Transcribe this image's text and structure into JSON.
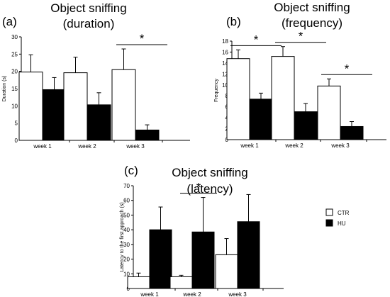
{
  "legend": {
    "entries": [
      {
        "label": "CTR",
        "color": "#ffffff"
      },
      {
        "label": "HU",
        "color": "#000000"
      }
    ]
  },
  "chart_data": [
    {
      "panel": "(a)",
      "type": "bar",
      "title": [
        "Object sniffing",
        "(duration)"
      ],
      "ylabel": "Duration (s)",
      "ylim": [
        0,
        30
      ],
      "yticks": [
        0,
        5,
        10,
        15,
        20,
        25,
        30
      ],
      "categories": [
        "week 1",
        "week 2",
        "week 3"
      ],
      "series": [
        {
          "name": "CTR",
          "color": "#ffffff",
          "values": [
            19.8,
            19.6,
            20.5
          ],
          "errors": [
            5,
            4.5,
            6
          ]
        },
        {
          "name": "HU",
          "color": "#000000",
          "values": [
            14.7,
            10.3,
            3
          ],
          "errors": [
            3.5,
            3.5,
            1.5
          ]
        }
      ],
      "significance": [
        {
          "category": 2,
          "label": "*"
        }
      ]
    },
    {
      "panel": "(b)",
      "type": "bar",
      "title": [
        "Object sniffing",
        "(frequency)"
      ],
      "ylabel": "Frequency",
      "ylim": [
        0,
        18
      ],
      "yticks": [
        0,
        2,
        4,
        6,
        8,
        10,
        12,
        14,
        16,
        18
      ],
      "categories": [
        "week 1",
        "week 2",
        "week 3"
      ],
      "series": [
        {
          "name": "CTR",
          "color": "#ffffff",
          "values": [
            14.8,
            15.2,
            9.8
          ],
          "errors": [
            1.6,
            1.8,
            1.3
          ]
        },
        {
          "name": "HU",
          "color": "#000000",
          "values": [
            7.4,
            5.1,
            2.4
          ],
          "errors": [
            1.1,
            1.5,
            0.9
          ]
        }
      ],
      "significance": [
        {
          "category": 0,
          "label": "*"
        },
        {
          "category": 1,
          "label": "*"
        },
        {
          "category": 2,
          "label": "*"
        }
      ]
    },
    {
      "panel": "(c)",
      "type": "bar",
      "title": [
        "Object sniffing",
        "(latency)"
      ],
      "ylabel": "Latency to the first approach (s)",
      "ylim": [
        0,
        70
      ],
      "yticks": [
        0,
        10,
        20,
        30,
        40,
        50,
        60,
        70
      ],
      "categories": [
        "week 1",
        "week 2",
        "week 3"
      ],
      "series": [
        {
          "name": "CTR",
          "color": "#ffffff",
          "values": [
            8,
            8,
            23
          ],
          "errors": [
            2.5,
            1,
            11
          ]
        },
        {
          "name": "HU",
          "color": "#000000",
          "values": [
            40,
            38.5,
            45.5
          ],
          "errors": [
            15.5,
            23.5,
            18.5
          ]
        }
      ],
      "significance": [
        {
          "category": 1,
          "label": "*"
        }
      ]
    }
  ]
}
